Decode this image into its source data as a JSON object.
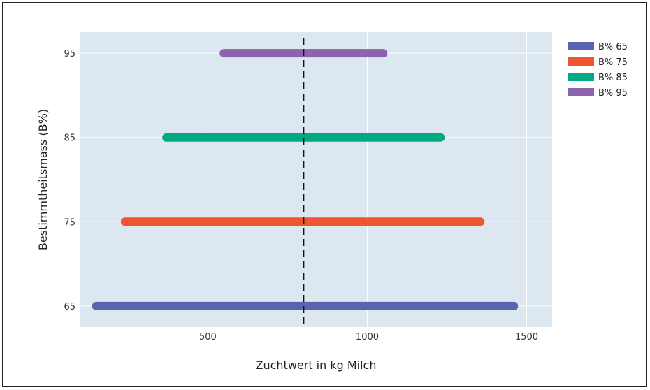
{
  "chart_data": {
    "type": "range",
    "xlabel": "Zuchtwert in kg Milch",
    "ylabel": "Bestimmtheitsmass (B%)",
    "xlim": [
      100,
      1580
    ],
    "ylim": [
      62.5,
      97.5
    ],
    "xticks": [
      500,
      1000,
      1500
    ],
    "yticks": [
      65,
      75,
      85,
      95
    ],
    "grid": true,
    "legend_position": "right",
    "reference_line": {
      "x": 800,
      "style": "dashed",
      "color": "#111111"
    },
    "series": [
      {
        "name": "B% 65",
        "y": 65,
        "x_start": 150,
        "x_end": 1460,
        "color": "#5a63b0"
      },
      {
        "name": "B% 75",
        "y": 75,
        "x_start": 240,
        "x_end": 1355,
        "color": "#ef5531"
      },
      {
        "name": "B% 85",
        "y": 85,
        "x_start": 370,
        "x_end": 1230,
        "color": "#00a884"
      },
      {
        "name": "B% 95",
        "y": 95,
        "x_start": 550,
        "x_end": 1050,
        "color": "#8e63ad"
      }
    ]
  }
}
